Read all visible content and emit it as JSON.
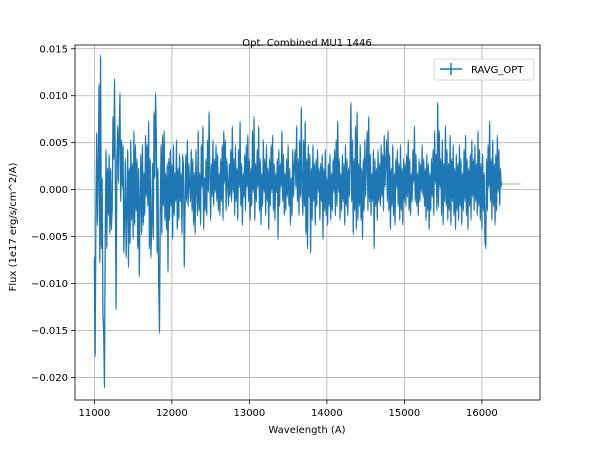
{
  "chart_data": {
    "type": "line",
    "title": "Opt. Combined MU1 1446",
    "xlabel": "Wavelength (A)",
    "ylabel": "Flux (1e17 erg/s/cm^2/A)",
    "xlim": [
      10750,
      16750
    ],
    "ylim": [
      -0.0224,
      0.0154
    ],
    "xticks": [
      11000,
      12000,
      13000,
      14000,
      15000,
      16000
    ],
    "yticks": [
      -0.02,
      -0.015,
      -0.01,
      -0.005,
      0.0,
      0.005,
      0.01,
      0.015
    ],
    "ytick_labels": [
      "−0.020",
      "−0.015",
      "−0.010",
      "−0.005",
      "0.000",
      "0.005",
      "0.010",
      "0.015"
    ],
    "grid": true,
    "legend_position": "top-right",
    "colors": {
      "series": "#1f77b4",
      "secondary": "#2ca02c"
    },
    "series": [
      {
        "name": "RAVG_OPT",
        "x_start": 11000,
        "x_step": 10,
        "values": [
          -0.0075,
          -0.0175,
          -0.002,
          0.0058,
          -0.0035,
          0.002,
          0.011,
          -0.0075,
          0.014,
          -0.006,
          0.001,
          -0.013,
          -0.015,
          -0.0208,
          -0.005,
          0.004,
          -0.006,
          0.002,
          -0.0025,
          0.0035,
          -0.0045,
          0.002,
          -0.004,
          -0.002,
          0.0075,
          0.0035,
          0.0115,
          0.0015,
          -0.0125,
          0.0032,
          0.0065,
          0.001,
          0.006,
          0.01,
          -0.001,
          0.005,
          0.0005,
          0.0045,
          -0.0065,
          -0.003,
          0.003,
          -0.007,
          -0.002,
          0.004,
          -0.008,
          0.002,
          -0.0055,
          0.005,
          -0.003,
          0.0025,
          -0.005,
          0.006,
          -0.0035,
          0.0045,
          -0.002,
          0.003,
          -0.006,
          0.002,
          -0.009,
          -0.001,
          0.0035,
          -0.0045,
          0.0045,
          -0.0035,
          0.0015,
          -0.0025,
          0.0055,
          -0.0005,
          0.0045,
          -0.0015,
          0.007,
          -0.006,
          0.003,
          -0.007,
          -0.0035,
          0.0025,
          -0.005,
          0.008,
          0.0015,
          0.01,
          0.005,
          -0.0065,
          0.002,
          -0.01,
          -0.015,
          -0.0025,
          0.0045,
          -0.0045,
          0.0055,
          -0.0015,
          0.006,
          -0.003,
          0.0015,
          -0.004,
          0.0025,
          -0.0085,
          0.003,
          -0.003,
          0.004,
          -0.0015,
          0.0025,
          -0.005,
          0.0045,
          -0.0025,
          0.0015,
          -0.001,
          0.005,
          -0.004,
          0.002,
          -0.003,
          0.0035,
          -0.001,
          0.0015,
          -0.0045,
          0.0035,
          0.0025,
          -0.008,
          -0.002,
          0.0035,
          -0.001,
          0.005,
          -0.0015,
          0.0025,
          0.0005,
          -0.001,
          0.004,
          -0.002,
          0.003,
          -0.0035,
          0.0015,
          -0.0045,
          0.004,
          0.0,
          -0.0025,
          0.006,
          -0.002,
          0.0015,
          -0.0035,
          0.0045,
          0.0005,
          0.0065,
          -0.004,
          0.001,
          -0.002,
          0.003,
          -0.0025,
          0.005,
          0.0,
          0.008,
          0.0015,
          -0.003,
          0.0025,
          -0.0005,
          0.005,
          -0.0015,
          0.003,
          0.0,
          0.0045,
          -0.001,
          0.0035,
          -0.002,
          0.0015,
          -0.0025,
          0.003,
          -0.001,
          0.0045,
          -0.003,
          0.006,
          0.001,
          0.005,
          -0.002,
          0.003,
          0.0005,
          -0.0015,
          0.0025,
          -0.0005,
          0.004,
          -0.001,
          0.0065,
          0.0,
          0.003,
          -0.0025,
          0.0045,
          -0.001,
          0.002,
          -0.003,
          0.004,
          0.0005,
          0.007,
          -0.0015,
          0.0025,
          -0.0035,
          0.0015,
          -0.0005,
          0.0035,
          -0.002,
          0.0045,
          0.0005,
          0.0055,
          -0.001,
          0.003,
          -0.003,
          0.002,
          -0.0015,
          0.006,
          0.0,
          0.0075,
          -0.003,
          0.0025,
          -0.001,
          0.004,
          0.0005,
          0.0065,
          -0.002,
          0.003,
          -0.0035,
          0.0015,
          -0.0015,
          0.005,
          0.0,
          0.003,
          -0.0025,
          0.0045,
          -0.001,
          0.002,
          -0.004,
          0.003,
          -0.0015,
          0.0045,
          0.0,
          0.0055,
          -0.002,
          0.0025,
          -0.003,
          0.0015,
          0.0,
          0.003,
          -0.005,
          0.004,
          -0.0015,
          0.0025,
          0.0005,
          0.006,
          -0.001,
          0.0035,
          -0.0025,
          0.0015,
          -0.002,
          0.003,
          -0.0005,
          0.0045,
          -0.0015,
          0.002,
          -0.0035,
          0.001,
          -0.0025,
          0.004,
          -0.0005,
          0.0025,
          0.004,
          0.0005,
          0.0065,
          -0.001,
          0.003,
          -0.0025,
          0.005,
          -0.0005,
          0.0085,
          0.0,
          -0.0025,
          0.005,
          -0.0015,
          0.007,
          -0.0045,
          0.003,
          -0.006,
          0.0045,
          -0.0005,
          0.0035,
          -0.0065,
          0.002,
          -0.003,
          0.0045,
          -0.001,
          0.0025,
          -0.0035,
          0.003,
          -0.0015,
          0.004,
          0.0,
          0.002,
          -0.003,
          0.0025,
          -0.001,
          0.0035,
          -0.005,
          0.002,
          -0.002,
          0.004,
          -0.0025,
          0.001,
          -0.0035,
          0.0025,
          -0.0015,
          0.0035,
          -0.003,
          0.0015,
          -0.002,
          0.003,
          0.0,
          0.004,
          -0.0025,
          0.005,
          -0.0015,
          0.007,
          0.0,
          0.003,
          -0.003,
          0.0015,
          -0.002,
          0.0035,
          -0.001,
          0.0025,
          -0.0035,
          0.0045,
          -0.0015,
          0.003,
          -0.0025,
          0.002,
          -0.0005,
          0.0035,
          0.009,
          -0.001,
          0.005,
          -0.0045,
          0.003,
          -0.002,
          0.0065,
          -0.004,
          0.008,
          -0.003,
          0.0025,
          -0.0015,
          0.0045,
          -0.003,
          0.002,
          -0.005,
          0.003,
          -0.002,
          0.005,
          -0.0005,
          0.003,
          0.006,
          -0.002,
          0.0075,
          -0.001,
          0.0035,
          -0.0025,
          0.0015,
          -0.001,
          0.004,
          -0.006,
          0.003,
          -0.0015,
          0.002,
          -0.003,
          0.004,
          -0.001,
          0.0025,
          -0.0015,
          0.0045,
          -0.0005,
          0.0035,
          -0.002,
          0.0055,
          0.0005,
          0.003,
          0.005,
          -0.001,
          0.006,
          -0.002,
          0.0035,
          -0.004,
          0.002,
          -0.0015,
          0.0045,
          -0.0025,
          0.0015,
          -0.0035,
          0.003,
          0.0005,
          0.004,
          -0.0015,
          0.0025,
          -0.003,
          0.0045,
          -0.002,
          0.002,
          -0.0035,
          0.003,
          -0.001,
          0.0025,
          -0.0015,
          0.0035,
          -0.0005,
          0.005,
          -0.002,
          0.003,
          -0.0025,
          0.0015,
          -0.001,
          0.004,
          0.001,
          0.0065,
          -0.001,
          0.0035,
          -0.0015,
          0.0015,
          -0.0025,
          0.003,
          -0.001,
          0.0025,
          0.0,
          0.0045,
          -0.0005,
          0.003,
          -0.0015,
          0.002,
          -0.003,
          0.0035,
          -0.002,
          0.0025,
          -0.004,
          0.0015,
          -0.002,
          0.003,
          -0.0005,
          0.004,
          -0.0025,
          0.006,
          0.001,
          0.0035,
          -0.002,
          0.009,
          -0.0015,
          0.006,
          0.0005,
          0.003,
          -0.0025,
          0.005,
          -0.0035,
          0.0025,
          -0.001,
          0.0065,
          -0.0015,
          0.004,
          -0.003,
          0.0025,
          -0.002,
          0.0055,
          -0.0035,
          0.003,
          -0.001,
          0.0045,
          -0.0025,
          0.002,
          -0.004,
          0.0035,
          -0.002,
          0.0025,
          -0.003,
          0.0045,
          -0.0015,
          0.003,
          -0.0035,
          0.0015,
          -0.002,
          0.004,
          -0.001,
          0.0055,
          -0.0025,
          0.003,
          -0.004,
          0.002,
          -0.0015,
          0.0035,
          -0.003,
          0.005,
          -0.0005,
          0.003,
          -0.002,
          0.0045,
          -0.001,
          0.0025,
          -0.0025,
          0.006,
          -0.0015,
          0.004,
          -0.003,
          0.0025,
          -0.004,
          0.0035,
          -0.002,
          0.0015,
          -0.0055,
          -0.006,
          0.003,
          -0.002,
          0.0045,
          0.0005,
          0.007,
          -0.001,
          0.003,
          -0.003,
          0.005,
          -0.0015,
          0.0025,
          -0.0035,
          0.0035,
          -0.002,
          0.0055,
          0.0,
          0.004,
          -0.0015,
          0.002,
          0.0005
        ]
      }
    ],
    "secondary_line": {
      "x": [
        12400,
        16500
      ],
      "values": [
        0.0006,
        0.0006
      ]
    }
  }
}
